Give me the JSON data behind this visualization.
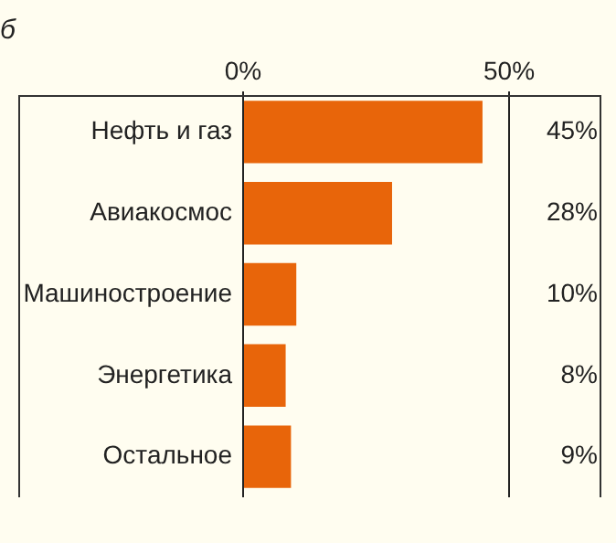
{
  "chart_data": {
    "type": "bar",
    "orientation": "horizontal",
    "title": "б",
    "categories": [
      "Нефть и газ",
      "Авиакосмос",
      "Машиностроение",
      "Энергетика",
      "Остальное"
    ],
    "values": [
      45,
      28,
      10,
      8,
      9
    ],
    "color": "#e8650a",
    "value_labels": [
      "45%",
      "28%",
      "10%",
      "8%",
      "9%"
    ],
    "xlim": [
      0,
      67
    ],
    "xticks": [
      {
        "value": 0,
        "label": "0%"
      },
      {
        "value": 50,
        "label": "50%"
      }
    ],
    "grid": "x",
    "legend": false
  }
}
